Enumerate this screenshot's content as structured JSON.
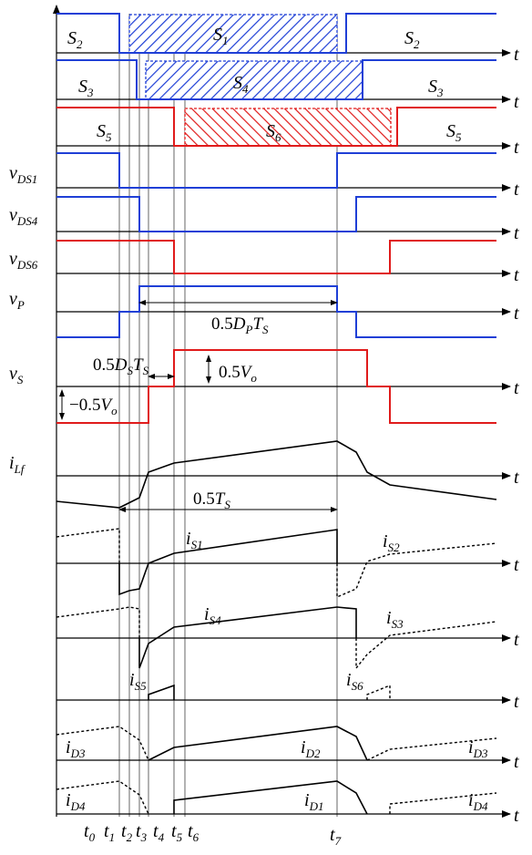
{
  "gates": {
    "row1": {
      "left": "S",
      "left_sub": "2",
      "mid": "S",
      "mid_sub": "1",
      "right": "S",
      "right_sub": "2"
    },
    "row2": {
      "left": "S",
      "left_sub": "3",
      "mid": "S",
      "mid_sub": "4",
      "right": "S",
      "right_sub": "3"
    },
    "row3": {
      "left": "S",
      "left_sub": "5",
      "mid": "S",
      "mid_sub": "6",
      "right": "S",
      "right_sub": "5"
    }
  },
  "axis_label": "t",
  "labels": {
    "vds1": {
      "main": "v",
      "sub": "DS1"
    },
    "vds4": {
      "main": "v",
      "sub": "DS4"
    },
    "vds6": {
      "main": "v",
      "sub": "DS6"
    },
    "vp": {
      "main": "v",
      "sub": "P"
    },
    "vs": {
      "main": "v",
      "sub": "S"
    },
    "ilf": {
      "main": "i",
      "sub": "Lf"
    },
    "is1": {
      "main": "i",
      "sub": "S1"
    },
    "is2": {
      "main": "i",
      "sub": "S2"
    },
    "is4": {
      "main": "i",
      "sub": "S4"
    },
    "is3": {
      "main": "i",
      "sub": "S3"
    },
    "is5": {
      "main": "i",
      "sub": "S5"
    },
    "is6": {
      "main": "i",
      "sub": "S6"
    },
    "id3a": {
      "main": "i",
      "sub": "D3"
    },
    "id2": {
      "main": "i",
      "sub": "D2"
    },
    "id3b": {
      "main": "i",
      "sub": "D3"
    },
    "id4a": {
      "main": "i",
      "sub": "D4"
    },
    "id1": {
      "main": "i",
      "sub": "D1"
    },
    "id4b": {
      "main": "i",
      "sub": "D4"
    }
  },
  "annotations": {
    "dp": {
      "pre": "0.5",
      "d": "D",
      "dsub": "P",
      "t": "T",
      "tsub": "S"
    },
    "ds": {
      "pre": "0.5",
      "d": "D",
      "dsub": "S",
      "t": "T",
      "tsub": "S"
    },
    "vo_pos": {
      "pre": "0.5",
      "v": "V",
      "vsub": "o"
    },
    "vo_neg": {
      "pre": "−0.5",
      "v": "V",
      "vsub": "o"
    },
    "ts": {
      "pre": "0.5",
      "t": "T",
      "tsub": "S"
    }
  },
  "time_labels": [
    {
      "main": "t",
      "sub": "0"
    },
    {
      "main": "t",
      "sub": "1"
    },
    {
      "main": "t",
      "sub": "2"
    },
    {
      "main": "t",
      "sub": "3"
    },
    {
      "main": "t",
      "sub": "4"
    },
    {
      "main": "t",
      "sub": "5"
    },
    {
      "main": "t",
      "sub": "6"
    },
    {
      "main": "t",
      "sub": "7"
    }
  ],
  "colors": {
    "blue": "#1f3fd6",
    "red": "#e01b1b",
    "black": "#000000"
  }
}
